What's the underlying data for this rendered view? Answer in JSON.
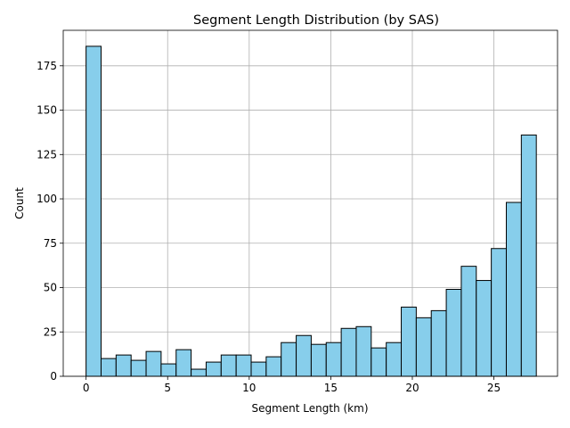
{
  "chart_data": {
    "type": "bar",
    "title": "Segment Length Distribution (by SAS)",
    "xlabel": "Segment Length (km)",
    "ylabel": "Count",
    "xlim": [
      -1.4,
      28.9
    ],
    "ylim": [
      0,
      195
    ],
    "xticks": [
      0,
      5,
      10,
      15,
      20,
      25
    ],
    "yticks": [
      0,
      25,
      50,
      75,
      100,
      125,
      150,
      175
    ],
    "grid": true,
    "bar_color": "#87ceeb",
    "edge_color": "#000000",
    "grid_color": "#b0b0b0",
    "bins": [
      {
        "x0": 0.0,
        "x1": 0.92,
        "count": 186
      },
      {
        "x0": 0.92,
        "x1": 1.84,
        "count": 10
      },
      {
        "x0": 1.84,
        "x1": 2.76,
        "count": 12
      },
      {
        "x0": 2.76,
        "x1": 3.68,
        "count": 9
      },
      {
        "x0": 3.68,
        "x1": 4.6,
        "count": 14
      },
      {
        "x0": 4.6,
        "x1": 5.52,
        "count": 7
      },
      {
        "x0": 5.52,
        "x1": 6.44,
        "count": 15
      },
      {
        "x0": 6.44,
        "x1": 7.36,
        "count": 4
      },
      {
        "x0": 7.36,
        "x1": 8.28,
        "count": 8
      },
      {
        "x0": 8.28,
        "x1": 9.2,
        "count": 12
      },
      {
        "x0": 9.2,
        "x1": 10.12,
        "count": 12
      },
      {
        "x0": 10.12,
        "x1": 11.04,
        "count": 8
      },
      {
        "x0": 11.04,
        "x1": 11.96,
        "count": 11
      },
      {
        "x0": 11.96,
        "x1": 12.88,
        "count": 19
      },
      {
        "x0": 12.88,
        "x1": 13.8,
        "count": 23
      },
      {
        "x0": 13.8,
        "x1": 14.72,
        "count": 18
      },
      {
        "x0": 14.72,
        "x1": 15.64,
        "count": 19
      },
      {
        "x0": 15.64,
        "x1": 16.56,
        "count": 27
      },
      {
        "x0": 16.56,
        "x1": 17.48,
        "count": 28
      },
      {
        "x0": 17.48,
        "x1": 18.4,
        "count": 16
      },
      {
        "x0": 18.4,
        "x1": 19.32,
        "count": 19
      },
      {
        "x0": 19.32,
        "x1": 20.24,
        "count": 39
      },
      {
        "x0": 20.24,
        "x1": 21.16,
        "count": 33
      },
      {
        "x0": 21.16,
        "x1": 22.08,
        "count": 37
      },
      {
        "x0": 22.08,
        "x1": 23.0,
        "count": 49
      },
      {
        "x0": 23.0,
        "x1": 23.92,
        "count": 62
      },
      {
        "x0": 23.92,
        "x1": 24.84,
        "count": 54
      },
      {
        "x0": 24.84,
        "x1": 25.76,
        "count": 72
      },
      {
        "x0": 25.76,
        "x1": 26.68,
        "count": 98
      },
      {
        "x0": 26.68,
        "x1": 27.6,
        "count": 136
      }
    ]
  }
}
